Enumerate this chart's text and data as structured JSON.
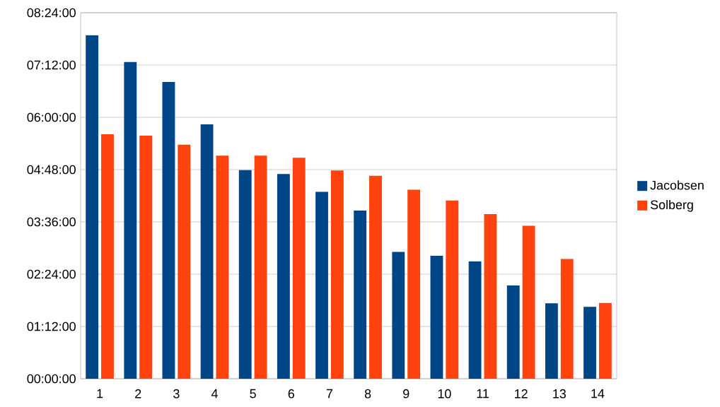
{
  "chart_data": {
    "type": "bar",
    "categories": [
      "1",
      "2",
      "3",
      "4",
      "5",
      "6",
      "7",
      "8",
      "9",
      "10",
      "11",
      "12",
      "13",
      "14"
    ],
    "series": [
      {
        "name": "Jacobsen",
        "color": "#004586",
        "values": [
          7.88,
          7.27,
          6.81,
          5.84,
          4.79,
          4.7,
          4.29,
          3.86,
          2.91,
          2.82,
          2.69,
          2.14,
          1.73,
          1.65
        ]
      },
      {
        "name": "Solberg",
        "color": "#ff420e",
        "values": [
          5.61,
          5.58,
          5.37,
          5.12,
          5.12,
          5.07,
          4.78,
          4.66,
          4.34,
          4.09,
          3.78,
          3.51,
          2.75,
          1.74
        ]
      }
    ],
    "ylim": [
      0,
      8.4
    ],
    "yticks": [
      {
        "value": 0,
        "label": "00:00:00"
      },
      {
        "value": 1.2,
        "label": "01:12:00"
      },
      {
        "value": 2.4,
        "label": "02:24:00"
      },
      {
        "value": 3.6,
        "label": "03:36:00"
      },
      {
        "value": 4.8,
        "label": "04:48:00"
      },
      {
        "value": 6,
        "label": "06:00:00"
      },
      {
        "value": 7.2,
        "label": "07:12:00"
      },
      {
        "value": 8.4,
        "label": "08:24:00"
      }
    ],
    "grid": "y",
    "legend": "right"
  }
}
